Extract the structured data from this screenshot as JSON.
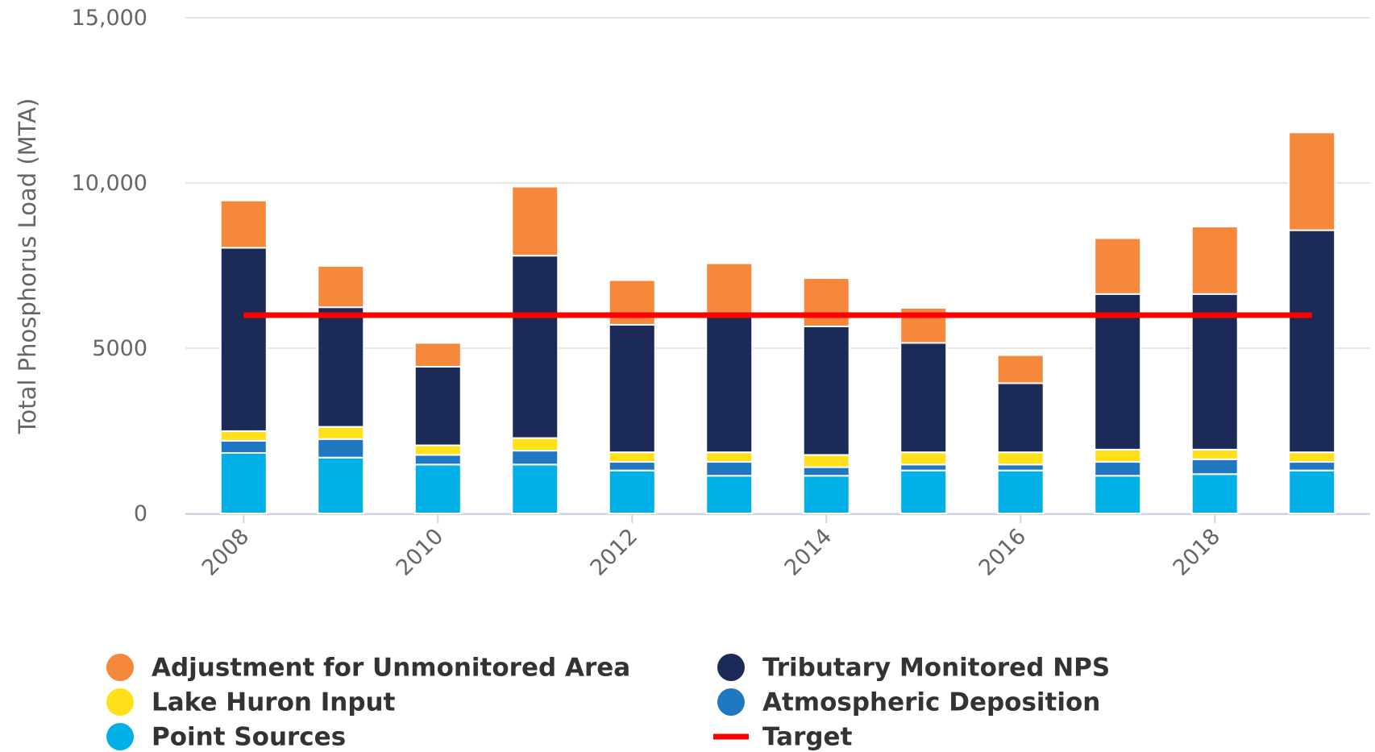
{
  "chart_data": {
    "type": "stacked-bar",
    "y_label": "Total Phosphorus Load (MTA)",
    "x": [
      2008,
      2009,
      2010,
      2011,
      2012,
      2013,
      2014,
      2015,
      2016,
      2017,
      2018,
      2019
    ],
    "xlim": [
      2007.4,
      2019.6
    ],
    "xticks": [
      2008,
      2010,
      2012,
      2014,
      2016,
      2018
    ],
    "ylim": [
      0,
      15000
    ],
    "yticks": [
      0,
      5000,
      {
        "value": 10000,
        "label": "10,000"
      },
      {
        "value": 15000,
        "label": "15,000"
      }
    ],
    "grid": true,
    "series": [
      {
        "name": "Point Sources",
        "color": "#00b0e6",
        "values": [
          1830,
          1690,
          1480,
          1480,
          1300,
          1140,
          1140,
          1300,
          1300,
          1140,
          1190,
          1300
        ]
      },
      {
        "name": "Atmospheric Deposition",
        "color": "#1f78c1",
        "values": [
          370,
          560,
          290,
          420,
          260,
          420,
          260,
          180,
          180,
          420,
          450,
          260
        ]
      },
      {
        "name": "Lake Huron Input",
        "color": "#ffe019",
        "values": [
          290,
          370,
          290,
          380,
          290,
          290,
          370,
          370,
          370,
          370,
          290,
          290
        ]
      },
      {
        "name": "Tributary Monitored NPS",
        "color": "#1b2a57",
        "values": [
          5550,
          3620,
          2380,
          5520,
          3860,
          4100,
          3890,
          3310,
          2090,
          4710,
          4710,
          6720
        ]
      },
      {
        "name": "Adjustment for Unmonitored Area",
        "color": "#f5883a",
        "values": [
          1430,
          1250,
          720,
          2090,
          1350,
          1620,
          1460,
          1060,
          850,
          1690,
          2040,
          2960
        ]
      },
      {
        "name": "Target",
        "color": "#ff0000",
        "kind": "line",
        "values": [
          6000,
          6000,
          6000,
          6000,
          6000,
          6000,
          6000,
          6000,
          6000,
          6000,
          6000,
          6000
        ]
      }
    ]
  }
}
